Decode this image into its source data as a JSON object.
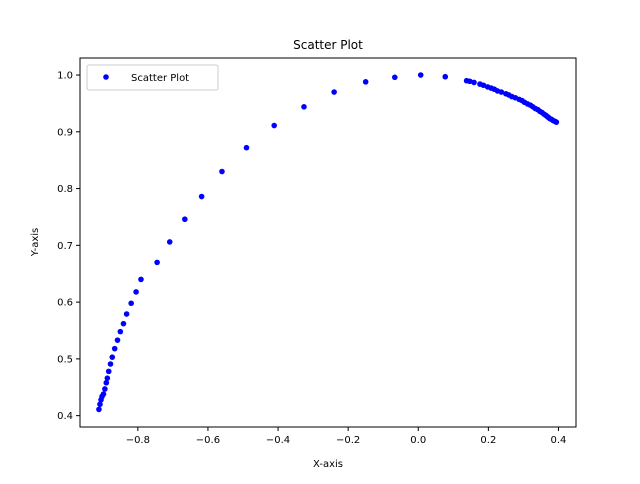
{
  "chart_data": {
    "type": "scatter",
    "title": "Scatter Plot",
    "xlabel": "X-axis",
    "ylabel": "Y-axis",
    "xlim": [
      -0.965,
      0.45
    ],
    "ylim": [
      0.38,
      1.03
    ],
    "xticks": [
      -0.8,
      -0.6,
      -0.4,
      -0.2,
      0.0,
      0.2,
      0.4
    ],
    "xtick_labels": [
      "−0.8",
      "−0.6",
      "−0.4",
      "−0.2",
      "0.0",
      "0.2",
      "0.4"
    ],
    "yticks": [
      0.4,
      0.5,
      0.6,
      0.7,
      0.8,
      0.9,
      1.0
    ],
    "ytick_labels": [
      "0.4",
      "0.5",
      "0.6",
      "0.7",
      "0.8",
      "0.9",
      "1.0"
    ],
    "grid": false,
    "legend": {
      "position": "top-left",
      "entries": [
        "Scatter Plot"
      ]
    },
    "series": [
      {
        "name": "Scatter Plot",
        "color": "#0000ff",
        "marker": "circle",
        "points": [
          [
            -0.911,
            0.411
          ],
          [
            -0.908,
            0.42
          ],
          [
            -0.905,
            0.428
          ],
          [
            -0.902,
            0.434
          ],
          [
            -0.898,
            0.438
          ],
          [
            -0.894,
            0.447
          ],
          [
            -0.89,
            0.458
          ],
          [
            -0.887,
            0.466
          ],
          [
            -0.883,
            0.478
          ],
          [
            -0.878,
            0.491
          ],
          [
            -0.873,
            0.503
          ],
          [
            -0.866,
            0.518
          ],
          [
            -0.858,
            0.533
          ],
          [
            -0.85,
            0.548
          ],
          [
            -0.841,
            0.562
          ],
          [
            -0.832,
            0.579
          ],
          [
            -0.819,
            0.598
          ],
          [
            -0.805,
            0.618
          ],
          [
            -0.791,
            0.64
          ],
          [
            -0.745,
            0.67
          ],
          [
            -0.709,
            0.706
          ],
          [
            -0.666,
            0.746
          ],
          [
            -0.618,
            0.786
          ],
          [
            -0.56,
            0.83
          ],
          [
            -0.49,
            0.872
          ],
          [
            -0.411,
            0.911
          ],
          [
            -0.326,
            0.944
          ],
          [
            -0.24,
            0.97
          ],
          [
            -0.15,
            0.988
          ],
          [
            -0.067,
            0.996
          ],
          [
            0.007,
            1.0
          ],
          [
            0.077,
            0.997
          ],
          [
            0.138,
            0.99
          ],
          [
            0.147,
            0.989
          ],
          [
            0.159,
            0.987
          ],
          [
            0.176,
            0.984
          ],
          [
            0.186,
            0.982
          ],
          [
            0.198,
            0.979
          ],
          [
            0.208,
            0.977
          ],
          [
            0.217,
            0.975
          ],
          [
            0.226,
            0.972
          ],
          [
            0.237,
            0.97
          ],
          [
            0.25,
            0.967
          ],
          [
            0.258,
            0.965
          ],
          [
            0.267,
            0.962
          ],
          [
            0.277,
            0.96
          ],
          [
            0.288,
            0.957
          ],
          [
            0.296,
            0.955
          ],
          [
            0.303,
            0.952
          ],
          [
            0.312,
            0.949
          ],
          [
            0.32,
            0.947
          ],
          [
            0.327,
            0.944
          ],
          [
            0.334,
            0.941
          ],
          [
            0.341,
            0.939
          ],
          [
            0.347,
            0.936
          ],
          [
            0.353,
            0.934
          ],
          [
            0.359,
            0.931
          ],
          [
            0.364,
            0.929
          ],
          [
            0.368,
            0.927
          ],
          [
            0.372,
            0.925
          ],
          [
            0.376,
            0.923
          ],
          [
            0.38,
            0.922
          ],
          [
            0.384,
            0.92
          ],
          [
            0.388,
            0.919
          ],
          [
            0.391,
            0.918
          ],
          [
            0.394,
            0.917
          ]
        ]
      }
    ]
  }
}
